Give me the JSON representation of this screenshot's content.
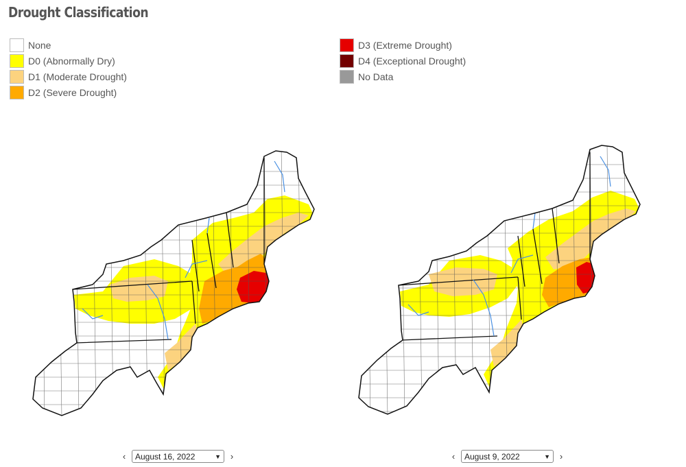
{
  "title": "Drought Classification",
  "legend": {
    "left": [
      {
        "label": "None",
        "color": "#ffffff"
      },
      {
        "label": "D0 (Abnormally Dry)",
        "color": "#ffff00"
      },
      {
        "label": "D1 (Moderate Drought)",
        "color": "#fcd37f"
      },
      {
        "label": "D2 (Severe Drought)",
        "color": "#ffaa00"
      }
    ],
    "right": [
      {
        "label": "D3 (Extreme Drought)",
        "color": "#e60000"
      },
      {
        "label": "D4 (Exceptional Drought)",
        "color": "#730000"
      },
      {
        "label": "No Data",
        "color": "#999999"
      }
    ]
  },
  "maps": [
    {
      "date": "August 16, 2022",
      "prev_icon": "chevron-left-icon",
      "next_icon": "chevron-right-icon"
    },
    {
      "date": "August 9, 2022",
      "prev_icon": "chevron-left-icon",
      "next_icon": "chevron-right-icon"
    }
  ],
  "arrows": {
    "prev": "‹",
    "next": "›",
    "caret": "▼"
  }
}
